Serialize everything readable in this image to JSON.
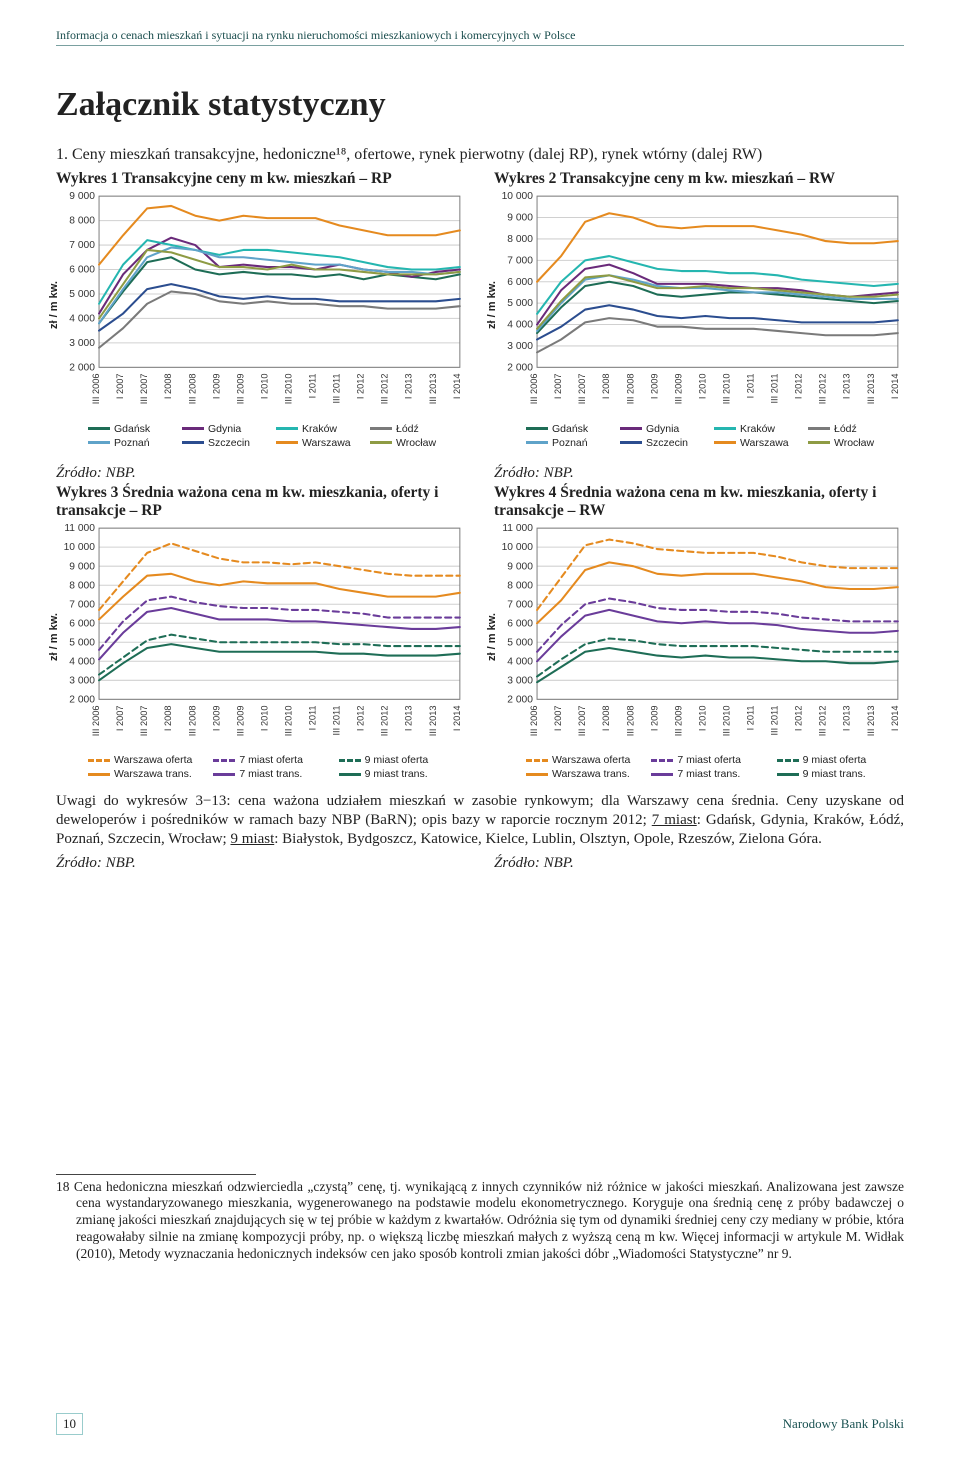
{
  "running_head": "Informacja o cenach mieszkań i sytuacji na rynku nieruchomości mieszkaniowych i komercyjnych w Polsce",
  "main_heading": "Załącznik statystyczny",
  "section_intro": "1. Ceny mieszkań transakcyjne, hedoniczne¹⁸, ofertowe, rynek pierwotny (dalej RP), rynek wtórny (dalej RW)",
  "xcats": [
    "III 2006",
    "I 2007",
    "III 2007",
    "I 2008",
    "III 2008",
    "I 2009",
    "III 2009",
    "I 2010",
    "III 2010",
    "I 2011",
    "III 2011",
    "I 2012",
    "III 2012",
    "I 2013",
    "III 2013",
    "I 2014"
  ],
  "cities_legend": [
    {
      "label": "Gdańsk",
      "color": "#1e6d56"
    },
    {
      "label": "Gdynia",
      "color": "#6a2a7a"
    },
    {
      "label": "Kraków",
      "color": "#25b6b0"
    },
    {
      "label": "Łódź",
      "color": "#7a7a7a"
    },
    {
      "label": "Poznań",
      "color": "#5fa3c9"
    },
    {
      "label": "Szczecin",
      "color": "#2b4d8f"
    },
    {
      "label": "Warszawa",
      "color": "#e58a1f"
    },
    {
      "label": "Wrocław",
      "color": "#8e9b44"
    }
  ],
  "avg_legend": [
    {
      "label": "Warszawa oferta",
      "color": "#e58a1f",
      "dash": true
    },
    {
      "label": "7 miast oferta",
      "color": "#6a3c9a",
      "dash": true
    },
    {
      "label": "9 miast oferta",
      "color": "#1e6d56",
      "dash": true
    },
    {
      "label": "Warszawa trans.",
      "color": "#e58a1f",
      "dash": false
    },
    {
      "label": "7 miast trans.",
      "color": "#6a3c9a",
      "dash": false
    },
    {
      "label": "9 miast trans.",
      "color": "#1e6d56",
      "dash": false
    }
  ],
  "chart1": {
    "title": "Wykres 1 Transakcyjne ceny m kw. mieszkań – RP",
    "ylabel": "zł / m kw.",
    "ylim": [
      2000,
      9000
    ],
    "ytick_step": 1000,
    "series": {
      "Gdańsk": [
        3800,
        5100,
        6300,
        6500,
        6000,
        5800,
        5900,
        5800,
        5800,
        5700,
        5800,
        5600,
        5800,
        5700,
        5600,
        5800
      ],
      "Gdynia": [
        4200,
        5800,
        6800,
        7300,
        7000,
        6100,
        6200,
        6100,
        6100,
        6000,
        6200,
        6000,
        5900,
        5700,
        5900,
        6000
      ],
      "Kraków": [
        4600,
        6200,
        7200,
        7000,
        6800,
        6600,
        6800,
        6800,
        6700,
        6600,
        6500,
        6300,
        6100,
        6000,
        6000,
        6100
      ],
      "Łódź": [
        2800,
        3600,
        4600,
        5100,
        5000,
        4700,
        4600,
        4700,
        4600,
        4600,
        4500,
        4500,
        4400,
        4400,
        4400,
        4500
      ],
      "Poznań": [
        3800,
        5200,
        6500,
        6900,
        6800,
        6500,
        6500,
        6400,
        6300,
        6200,
        6200,
        6000,
        5900,
        5900,
        5800,
        5900
      ],
      "Szczecin": [
        3500,
        4200,
        5200,
        5400,
        5200,
        4900,
        4800,
        4900,
        4800,
        4800,
        4700,
        4700,
        4700,
        4700,
        4700,
        4800
      ],
      "Warszawa": [
        6200,
        7400,
        8500,
        8600,
        8200,
        8000,
        8200,
        8100,
        8100,
        8100,
        7800,
        7600,
        7400,
        7400,
        7400,
        7600
      ],
      "Wrocław": [
        4000,
        5400,
        6800,
        6700,
        6400,
        6100,
        6100,
        6000,
        6200,
        6000,
        6000,
        5900,
        5800,
        5800,
        5800,
        5900
      ]
    }
  },
  "chart2": {
    "title": "Wykres 2 Transakcyjne ceny m kw. mieszkań – RW",
    "ylabel": "zł / m kw.",
    "ylim": [
      2000,
      10000
    ],
    "ytick_step": 1000,
    "series": {
      "Gdańsk": [
        3600,
        4800,
        5800,
        6000,
        5800,
        5400,
        5300,
        5400,
        5500,
        5500,
        5400,
        5300,
        5200,
        5100,
        5000,
        5100
      ],
      "Gdynia": [
        4000,
        5600,
        6600,
        6800,
        6400,
        5900,
        5900,
        5900,
        5800,
        5700,
        5700,
        5600,
        5400,
        5300,
        5400,
        5500
      ],
      "Kraków": [
        4500,
        6000,
        7000,
        7200,
        6900,
        6600,
        6500,
        6500,
        6400,
        6400,
        6300,
        6100,
        6000,
        5900,
        5800,
        5900
      ],
      "Łódź": [
        2700,
        3300,
        4100,
        4300,
        4200,
        3900,
        3900,
        3800,
        3800,
        3800,
        3700,
        3600,
        3500,
        3500,
        3500,
        3600
      ],
      "Poznań": [
        3700,
        5000,
        6100,
        6300,
        6100,
        5800,
        5700,
        5700,
        5600,
        5500,
        5500,
        5400,
        5300,
        5200,
        5200,
        5200
      ],
      "Szczecin": [
        3300,
        3900,
        4700,
        4900,
        4700,
        4400,
        4300,
        4400,
        4300,
        4300,
        4200,
        4100,
        4100,
        4100,
        4100,
        4200
      ],
      "Warszawa": [
        6000,
        7200,
        8800,
        9200,
        9000,
        8600,
        8500,
        8600,
        8600,
        8600,
        8400,
        8200,
        7900,
        7800,
        7800,
        7900
      ],
      "Wrocław": [
        3800,
        5100,
        6200,
        6300,
        6000,
        5700,
        5700,
        5800,
        5700,
        5700,
        5600,
        5500,
        5400,
        5300,
        5300,
        5400
      ]
    }
  },
  "chart3": {
    "title": "Wykres 3 Średnia ważona cena m kw. mieszkania, oferty i transakcje – RP",
    "ylabel": "zł / m kw.",
    "ylim": [
      2000,
      11000
    ],
    "ytick_step": 1000,
    "series": {
      "Warszawa oferta": {
        "color": "#e58a1f",
        "dash": true,
        "data": [
          6700,
          8200,
          9700,
          10200,
          9800,
          9400,
          9200,
          9200,
          9100,
          9200,
          9000,
          8800,
          8600,
          8500,
          8500,
          8500
        ]
      },
      "7 miast oferta": {
        "color": "#6a3c9a",
        "dash": true,
        "data": [
          4600,
          6100,
          7200,
          7400,
          7100,
          6900,
          6800,
          6800,
          6700,
          6700,
          6600,
          6500,
          6300,
          6300,
          6300,
          6300
        ]
      },
      "9 miast oferta": {
        "color": "#1e6d56",
        "dash": true,
        "data": [
          3300,
          4200,
          5100,
          5400,
          5200,
          5000,
          5000,
          5000,
          5000,
          5000,
          4900,
          4900,
          4800,
          4800,
          4800,
          4800
        ]
      },
      "Warszawa trans.": {
        "color": "#e58a1f",
        "dash": false,
        "data": [
          6200,
          7400,
          8500,
          8600,
          8200,
          8000,
          8200,
          8100,
          8100,
          8100,
          7800,
          7600,
          7400,
          7400,
          7400,
          7600
        ]
      },
      "7 miast trans.": {
        "color": "#6a3c9a",
        "dash": false,
        "data": [
          4100,
          5500,
          6600,
          6800,
          6500,
          6200,
          6200,
          6200,
          6100,
          6100,
          6000,
          5900,
          5800,
          5700,
          5700,
          5800
        ]
      },
      "9 miast trans.": {
        "color": "#1e6d56",
        "dash": false,
        "data": [
          3000,
          3900,
          4700,
          4900,
          4700,
          4500,
          4500,
          4500,
          4500,
          4500,
          4400,
          4400,
          4300,
          4300,
          4300,
          4400
        ]
      }
    }
  },
  "chart4": {
    "title": "Wykres 4 Średnia ważona cena m kw. mieszkania, oferty i transakcje – RW",
    "ylabel": "zł / m kw.",
    "ylim": [
      2000,
      11000
    ],
    "ytick_step": 1000,
    "series": {
      "Warszawa oferta": {
        "color": "#e58a1f",
        "dash": true,
        "data": [
          6700,
          8400,
          10100,
          10400,
          10200,
          9900,
          9800,
          9700,
          9700,
          9700,
          9500,
          9200,
          9000,
          8900,
          8900,
          8900
        ]
      },
      "7 miast oferta": {
        "color": "#6a3c9a",
        "dash": true,
        "data": [
          4500,
          5900,
          7000,
          7300,
          7100,
          6800,
          6700,
          6700,
          6600,
          6600,
          6500,
          6300,
          6200,
          6100,
          6100,
          6100
        ]
      },
      "9 miast oferta": {
        "color": "#1e6d56",
        "dash": true,
        "data": [
          3200,
          4100,
          4900,
          5200,
          5100,
          4900,
          4800,
          4800,
          4800,
          4800,
          4700,
          4600,
          4500,
          4500,
          4500,
          4500
        ]
      },
      "Warszawa trans.": {
        "color": "#e58a1f",
        "dash": false,
        "data": [
          6000,
          7200,
          8800,
          9200,
          9000,
          8600,
          8500,
          8600,
          8600,
          8600,
          8400,
          8200,
          7900,
          7800,
          7800,
          7900
        ]
      },
      "7 miast trans.": {
        "color": "#6a3c9a",
        "dash": false,
        "data": [
          4000,
          5300,
          6400,
          6700,
          6400,
          6100,
          6000,
          6100,
          6000,
          6000,
          5900,
          5700,
          5600,
          5500,
          5500,
          5600
        ]
      },
      "9 miast trans.": {
        "color": "#1e6d56",
        "dash": false,
        "data": [
          2900,
          3700,
          4500,
          4700,
          4500,
          4300,
          4200,
          4300,
          4200,
          4200,
          4100,
          4000,
          4000,
          3900,
          3900,
          4000
        ]
      }
    }
  },
  "sources": {
    "nbp": "Źródło: NBP."
  },
  "note_parts": {
    "p1": "Uwagi do wykresów 3−13: cena ważona udziałem mieszkań w zasobie rynkowym; dla Warszawy cena średnia. Ceny uzyskane od deweloperów i pośredników w ramach bazy NBP (BaRN); opis bazy w raporcie rocznym 2012; ",
    "u1": "7 miast",
    "p2": ": Gdańsk, Gdynia, Kraków, Łódź, Poznań, Szczecin, Wrocław; ",
    "u2": "9 miast",
    "p3": ": Białystok, Bydgoszcz, Katowice, Kielce, Lublin, Olsztyn, Opole, Rzeszów, Zielona Góra."
  },
  "footnote": "18 Cena hedoniczna mieszkań odzwierciedla „czystą” cenę, tj. wynikającą z innych czynników niż różnice w jakości mieszkań. Analizowana jest zawsze cena wystandaryzowanego mieszkania, wygenerowanego na podstawie modelu ekonometrycznego. Koryguje ona średnią cenę z próby badawczej o zmianę jakości mieszkań znajdujących się w tej próbie w każdym z kwartałów. Odróżnia się tym od dynamiki średniej ceny czy mediany w próbie, która reagowałaby silnie na zmianę kompozycji próby, np. o większą liczbę mieszkań małych z wyższą ceną m kw. Więcej informacji w artykule M. Widłak (2010), Metody wyznaczania hedonicznych indeksów cen jako sposób kontroli zmian jakości dóbr „Wiadomości Statystyczne” nr 9.",
  "footer": {
    "page": "10",
    "org": "Narodowy Bank Polski"
  },
  "grid_color": "#d0d0d0",
  "axis_color": "#808080",
  "tick_font": "10px Arial"
}
